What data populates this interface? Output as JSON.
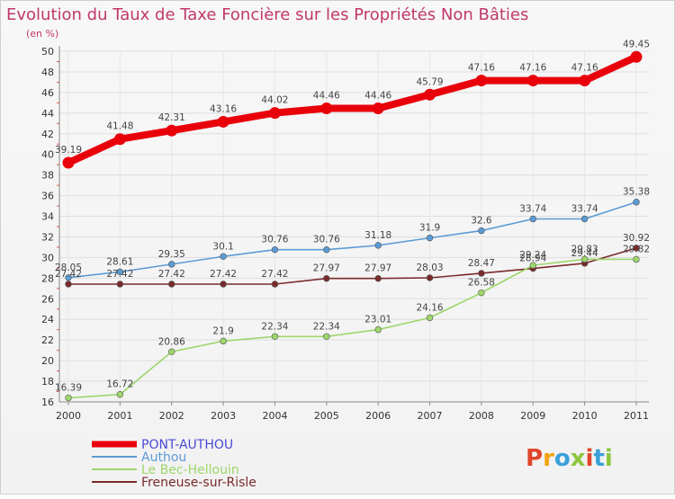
{
  "chart_data": {
    "type": "line",
    "title": "Evolution du Taux de Taxe Foncière sur les Propriétés Non Bâties",
    "unit_label": "(en %)",
    "x": [
      "2000",
      "2001",
      "2002",
      "2003",
      "2004",
      "2005",
      "2006",
      "2007",
      "2008",
      "2009",
      "2010",
      "2011"
    ],
    "ylim": [
      16,
      50
    ],
    "yticks": [
      16,
      18,
      20,
      22,
      24,
      26,
      28,
      30,
      32,
      34,
      36,
      38,
      40,
      42,
      44,
      46,
      48,
      50
    ],
    "grid": true,
    "legend_position": "bottom-left",
    "series": [
      {
        "name": "PONT-AUTHOU",
        "color": "#e8000b",
        "values": [
          39.19,
          41.48,
          42.31,
          43.16,
          44.02,
          44.46,
          44.46,
          45.79,
          47.16,
          47.16,
          47.16,
          49.45
        ],
        "labels": [
          "39.19",
          "41.48",
          "42.31",
          "43.16",
          "44.02",
          "44.46",
          "44.46",
          "45.79",
          "47.16",
          "47.16",
          "47.16",
          "49.45"
        ]
      },
      {
        "name": "Authou",
        "color": "#5b9bd5",
        "values": [
          28.05,
          28.61,
          29.35,
          30.1,
          30.76,
          30.76,
          31.18,
          31.9,
          32.6,
          33.74,
          33.74,
          35.38
        ],
        "labels": [
          "28.05",
          "28.61",
          "29.35",
          "30.1",
          "30.76",
          "30.76",
          "31.18",
          "31.9",
          "32.6",
          "33.74",
          "33.74",
          "35.38"
        ]
      },
      {
        "name": "Le Bec-Hellouin",
        "color": "#9ed66b",
        "values": [
          16.39,
          16.72,
          20.86,
          21.9,
          22.34,
          22.34,
          23.01,
          24.16,
          26.58,
          29.24,
          29.83,
          29.82
        ],
        "labels": [
          "16.39",
          "16.72",
          "20.86",
          "21.9",
          "22.34",
          "22.34",
          "23.01",
          "24.16",
          "26.58",
          "29.24",
          "29.83",
          "29.82"
        ]
      },
      {
        "name": "Freneuse-sur-Risle",
        "color": "#7a2a2a",
        "values": [
          27.42,
          27.42,
          27.42,
          27.42,
          27.42,
          27.97,
          27.97,
          28.03,
          28.47,
          28.94,
          29.44,
          30.92
        ],
        "labels": [
          "27.42",
          "27.42",
          "27.42",
          "27.42",
          "27.42",
          "27.97",
          "27.97",
          "28.03",
          "28.47",
          "28.94",
          "29.44",
          "30.92"
        ]
      }
    ]
  },
  "logo": {
    "text": "Proxiti",
    "colors": [
      "#e0452b",
      "#f2a30f",
      "#3aa0d8",
      "#8cc63f"
    ]
  }
}
